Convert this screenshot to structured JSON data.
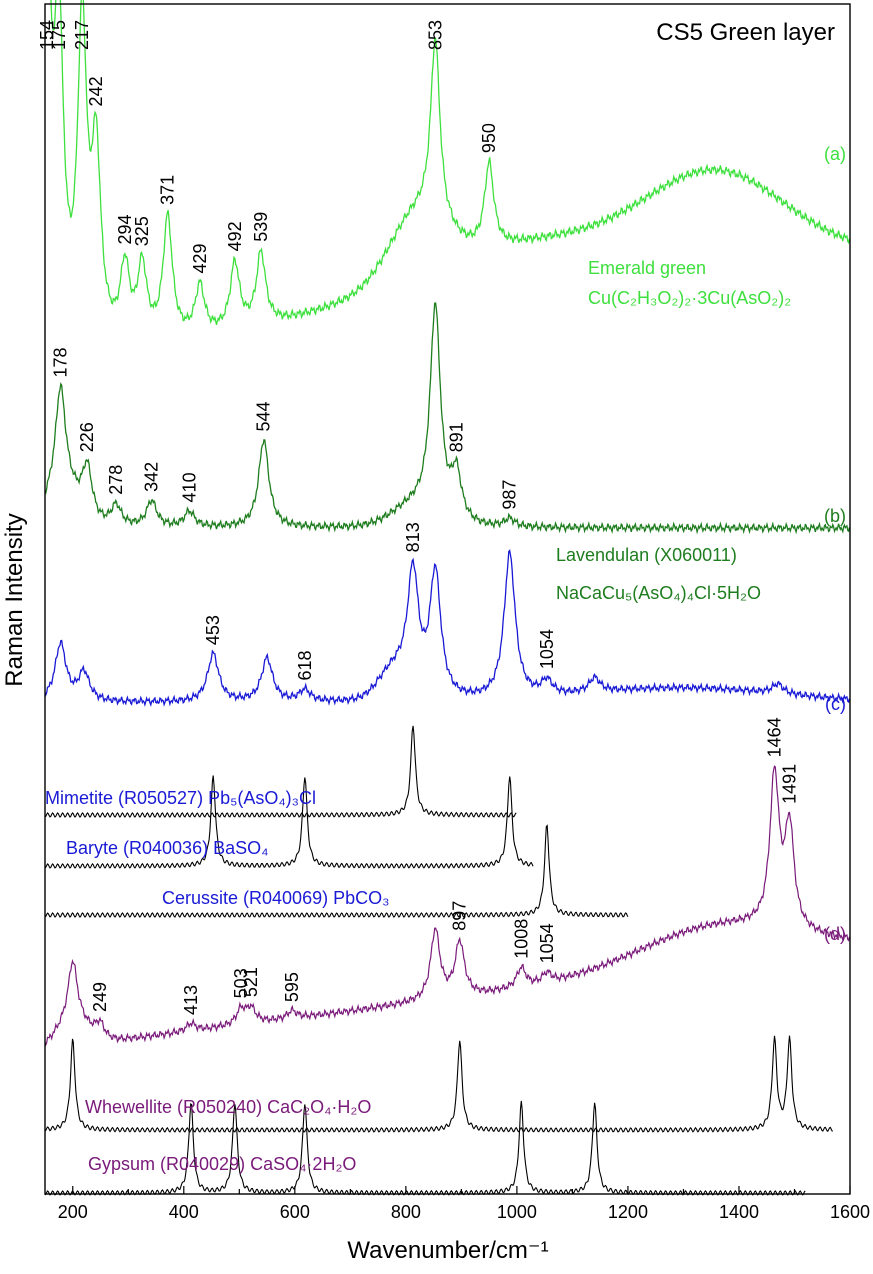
{
  "chart_data": {
    "type": "line",
    "title": "CS5 Green layer",
    "xlabel": "Wavenumber/cm⁻¹",
    "ylabel": "Raman Intensity",
    "xlim": [
      150,
      1600
    ],
    "x_ticks": [
      "200",
      "400",
      "600",
      "800",
      "1000",
      "1200",
      "1400",
      "1600"
    ],
    "x_tick_values": [
      200,
      400,
      600,
      800,
      1000,
      1200,
      1400,
      1600
    ],
    "y_ticks_shown": false,
    "colors": {
      "light_green": "#3ee03e",
      "dark_green": "#1e7d1e",
      "blue": "#1a1ad6",
      "purple": "#7a1a7a",
      "black": "#000000"
    },
    "series": [
      {
        "name": "(a)",
        "color": "light_green",
        "label_lines": [
          "Emerald green",
          "Cu(C₂H₃O₂)₂·3Cu(AsO₂)₂"
        ],
        "baseline": 160,
        "amplitude": 150,
        "peaks": [
          154,
          175,
          217,
          242,
          294,
          325,
          371,
          429,
          492,
          539,
          853,
          950
        ],
        "peak_labels": [
          "154",
          "175",
          "217",
          "242",
          "294",
          "325",
          "371",
          "429",
          "492",
          "539",
          "853",
          "950"
        ]
      },
      {
        "name": "(b)",
        "color": "dark_green",
        "label_lines": [
          "Lavendulan (X060011)",
          "NaCaCu₅(AsO₄)₄Cl·5H₂O"
        ],
        "baseline": 90,
        "amplitude": 120,
        "peaks": [
          178,
          226,
          278,
          342,
          410,
          544,
          853,
          891,
          987
        ],
        "peak_labels": [
          "178",
          "226",
          "278",
          "342",
          "410",
          "544",
          "891",
          "987"
        ]
      },
      {
        "name": "(c)",
        "color": "blue",
        "baseline": 50,
        "amplitude": 100,
        "peaks": [
          178,
          220,
          453,
          550,
          618,
          813,
          853,
          987,
          1054,
          1140,
          1470
        ],
        "peak_labels": [
          "453",
          "618",
          "813",
          "1054"
        ]
      },
      {
        "name": "(d)",
        "color": "purple",
        "baseline": 0,
        "amplitude": 100,
        "peaks": [
          200,
          249,
          413,
          503,
          521,
          595,
          853,
          897,
          1008,
          1054,
          1464,
          1491
        ],
        "peak_labels": [
          "249",
          "413",
          "503",
          "521",
          "595",
          "897",
          "1008",
          "1054",
          "1464",
          "1491"
        ]
      }
    ],
    "references": [
      {
        "label": "Mimetite (R050527) Pb₅(AsO₄)₃Cl",
        "color": "blue",
        "peaks": [
          813
        ]
      },
      {
        "label": "Baryte (R040036) BaSO₄",
        "color": "blue",
        "peaks": [
          453,
          618,
          987
        ]
      },
      {
        "label": "Cerussite (R040069) PbCO₃",
        "color": "blue",
        "peaks": [
          1054
        ]
      },
      {
        "label": "Whewellite (R050240) CaC₂O₄·H₂O",
        "color": "purple",
        "peaks": [
          200,
          897,
          1464,
          1491
        ]
      },
      {
        "label": "Gypsum (R040029) CaSO₄·2H₂O",
        "color": "purple",
        "peaks": [
          413,
          492,
          618,
          1008,
          1140
        ]
      }
    ]
  }
}
